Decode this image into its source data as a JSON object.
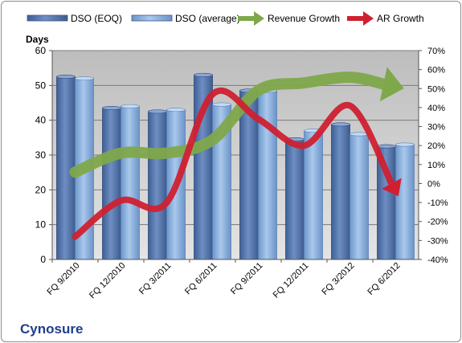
{
  "chart_data": {
    "type": "bar",
    "title": "",
    "caption": "Cynosure",
    "categories": [
      "FQ 9/2010",
      "FQ 12/2010",
      "FQ 3/2011",
      "FQ 6/2011",
      "FQ 9/2011",
      "FQ 12/2011",
      "FQ 3/2012",
      "FQ 6/2012"
    ],
    "left_axis": {
      "label": "Days",
      "min": 0,
      "max": 60,
      "step": 10,
      "ticks": [
        "0",
        "10",
        "20",
        "30",
        "40",
        "50",
        "60"
      ]
    },
    "right_axis": {
      "min": -40,
      "max": 70,
      "step": 10,
      "ticks": [
        "-40%",
        "-30%",
        "-20%",
        "-10%",
        "0%",
        "10%",
        "20%",
        "30%",
        "40%",
        "50%",
        "60%",
        "70%"
      ]
    },
    "bar_series": [
      {
        "name": "DSO (EOQ)",
        "axis": "left",
        "color": "#4f6fa3",
        "values": [
          52.5,
          43.5,
          42.5,
          53,
          48.5,
          34.5,
          38.8,
          32.5
        ]
      },
      {
        "name": "DSO (average)",
        "axis": "left",
        "color": "#7fa7d6",
        "values": [
          52,
          44,
          43,
          44.5,
          48.5,
          37,
          36,
          33
        ]
      }
    ],
    "line_series": [
      {
        "name": "Revenue Growth",
        "axis": "right",
        "color": "#7fa84a",
        "style": "arrow",
        "values": [
          6,
          16,
          16,
          23,
          49,
          53,
          56,
          51
        ]
      },
      {
        "name": "AR Growth",
        "axis": "right",
        "color": "#d02030",
        "style": "arrow",
        "values": [
          -28,
          -9,
          -10,
          47,
          34,
          20,
          41,
          -4
        ]
      }
    ],
    "grid": true,
    "legend_position": "top"
  }
}
